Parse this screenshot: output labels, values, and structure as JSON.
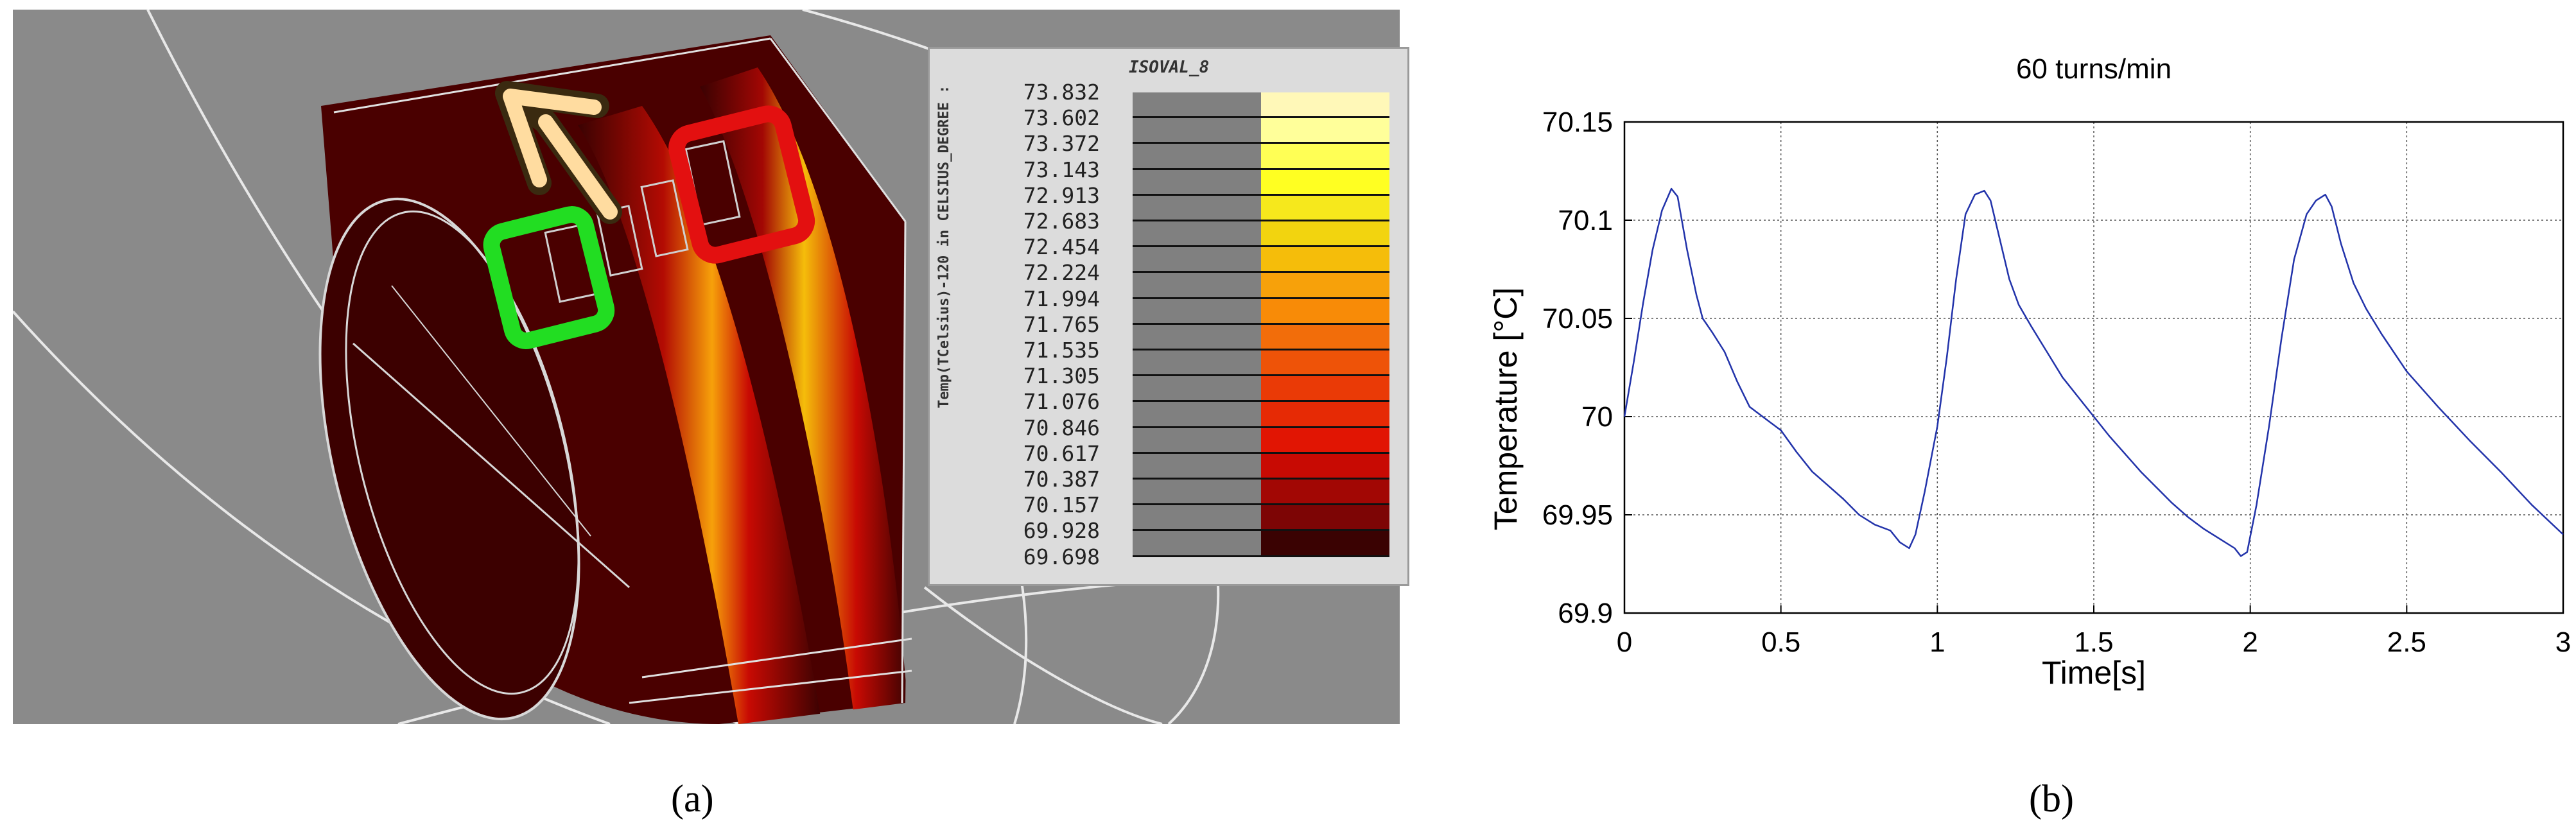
{
  "panel_a": {
    "caption": "(a)",
    "legend": {
      "title": "ISOVAL_8",
      "unit_label": "Temp(TCelsius)-120 in CELSIUS_DEGREE :",
      "values": [
        "73.832",
        "73.602",
        "73.372",
        "73.143",
        "72.913",
        "72.683",
        "72.454",
        "72.224",
        "71.994",
        "71.765",
        "71.535",
        "71.305",
        "71.076",
        "70.846",
        "70.617",
        "70.387",
        "70.157",
        "69.928",
        "69.698"
      ],
      "colors": [
        "#fff8b8",
        "#ffff9a",
        "#ffff55",
        "#ffff22",
        "#f6e81c",
        "#f2d40f",
        "#f5bd0a",
        "#f7a10a",
        "#f88b07",
        "#f26d0a",
        "#ee5308",
        "#ea3a06",
        "#e62a05",
        "#e11503",
        "#c80a03",
        "#a20704",
        "#7d0505",
        "#3a0202"
      ]
    }
  },
  "panel_b": {
    "caption": "(b)"
  },
  "chart_data": {
    "type": "line",
    "title": "60 turns/min",
    "xlabel": "Time[s]",
    "ylabel": "Temperature [°C]",
    "xlim": [
      0,
      3
    ],
    "ylim": [
      69.9,
      70.15
    ],
    "xticks": [
      "0",
      "0.5",
      "1",
      "1.5",
      "2",
      "2.5",
      "3"
    ],
    "yticks": [
      "70.15",
      "70.1",
      "70.05",
      "70",
      "69.95",
      "69.9"
    ],
    "grid": true,
    "series": [
      {
        "color": "#2233aa",
        "x": [
          0,
          0.03,
          0.06,
          0.09,
          0.12,
          0.15,
          0.17,
          0.2,
          0.23,
          0.25,
          0.28,
          0.32,
          0.36,
          0.4,
          0.45,
          0.5,
          0.55,
          0.6,
          0.65,
          0.7,
          0.75,
          0.8,
          0.85,
          0.88,
          0.91,
          0.93,
          0.96,
          1.0,
          1.03,
          1.06,
          1.09,
          1.12,
          1.15,
          1.17,
          1.2,
          1.23,
          1.26,
          1.3,
          1.35,
          1.4,
          1.45,
          1.5,
          1.55,
          1.6,
          1.65,
          1.7,
          1.75,
          1.8,
          1.85,
          1.9,
          1.95,
          1.97,
          1.99,
          2.02,
          2.06,
          2.1,
          2.14,
          2.18,
          2.21,
          2.24,
          2.26,
          2.29,
          2.33,
          2.37,
          2.42,
          2.5,
          2.6,
          2.7,
          2.8,
          2.9,
          3.0
        ],
        "y": [
          70.0,
          70.028,
          70.058,
          70.085,
          70.105,
          70.116,
          70.112,
          70.085,
          70.062,
          70.05,
          70.043,
          70.033,
          70.018,
          70.005,
          69.999,
          69.993,
          69.982,
          69.972,
          69.965,
          69.958,
          69.95,
          69.945,
          69.942,
          69.936,
          69.933,
          69.94,
          69.962,
          69.995,
          70.03,
          70.07,
          70.103,
          70.113,
          70.115,
          70.11,
          70.09,
          70.07,
          70.057,
          70.046,
          70.033,
          70.02,
          70.01,
          70.0,
          69.99,
          69.981,
          69.972,
          69.964,
          69.956,
          69.949,
          69.943,
          69.938,
          69.933,
          69.929,
          69.931,
          69.955,
          69.995,
          70.04,
          70.08,
          70.103,
          70.11,
          70.113,
          70.107,
          70.088,
          70.068,
          70.055,
          70.042,
          70.023,
          70.005,
          69.988,
          69.972,
          69.955,
          69.94
        ]
      }
    ]
  }
}
